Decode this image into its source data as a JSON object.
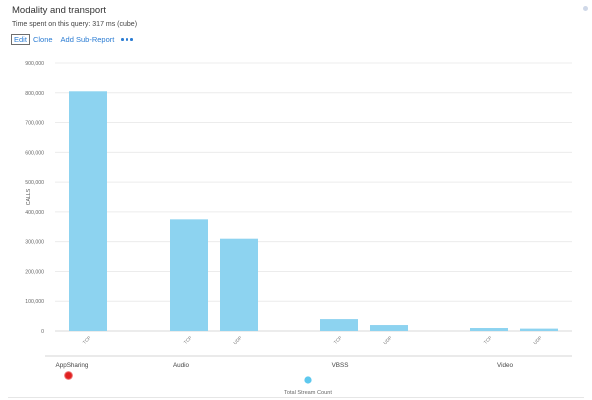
{
  "header": {
    "title": "Modality and transport",
    "subtitle": "Time spent on this query: 317 ms (cube)"
  },
  "actions": {
    "edit_label": "Edit",
    "clone_label": "Clone",
    "add_sub_report_label": "Add Sub-Report",
    "more_icon": "more-dots-icon"
  },
  "colors": {
    "bar": "#8dd3f0",
    "accent": "#2b7cd3",
    "legend_dot": "#5ec8ee"
  },
  "chart_data": {
    "type": "bar",
    "title": "",
    "ylabel": "CALLS",
    "xlabel": "",
    "ylim": [
      0,
      900000
    ],
    "yticks": [
      {
        "value": 0,
        "label": "0"
      },
      {
        "value": 100000,
        "label": "100,000"
      },
      {
        "value": 200000,
        "label": "200,000"
      },
      {
        "value": 300000,
        "label": "300,000"
      },
      {
        "value": 400000,
        "label": "400,000"
      },
      {
        "value": 500000,
        "label": "500,000"
      },
      {
        "value": 600000,
        "label": "600,000"
      },
      {
        "value": 700000,
        "label": "700,000"
      },
      {
        "value": 800000,
        "label": "800,000"
      },
      {
        "value": 900000,
        "label": "900,000"
      }
    ],
    "grid": true,
    "legend_position": "bottom-center",
    "series": [
      {
        "name": "Total Stream Count"
      }
    ],
    "groups": [
      {
        "label": "AppSharing",
        "bars": [
          {
            "label": "TCP",
            "value": 805000
          }
        ]
      },
      {
        "label": "Audio",
        "bars": [
          {
            "label": "TCP",
            "value": 375000
          },
          {
            "label": "UDP",
            "value": 310000
          }
        ]
      },
      {
        "label": "VBSS",
        "bars": [
          {
            "label": "TCP",
            "value": 40000
          },
          {
            "label": "UDP",
            "value": 20000
          }
        ]
      },
      {
        "label": "Video",
        "bars": [
          {
            "label": "TCP",
            "value": 10000
          },
          {
            "label": "UDP",
            "value": 8000
          }
        ]
      }
    ]
  }
}
